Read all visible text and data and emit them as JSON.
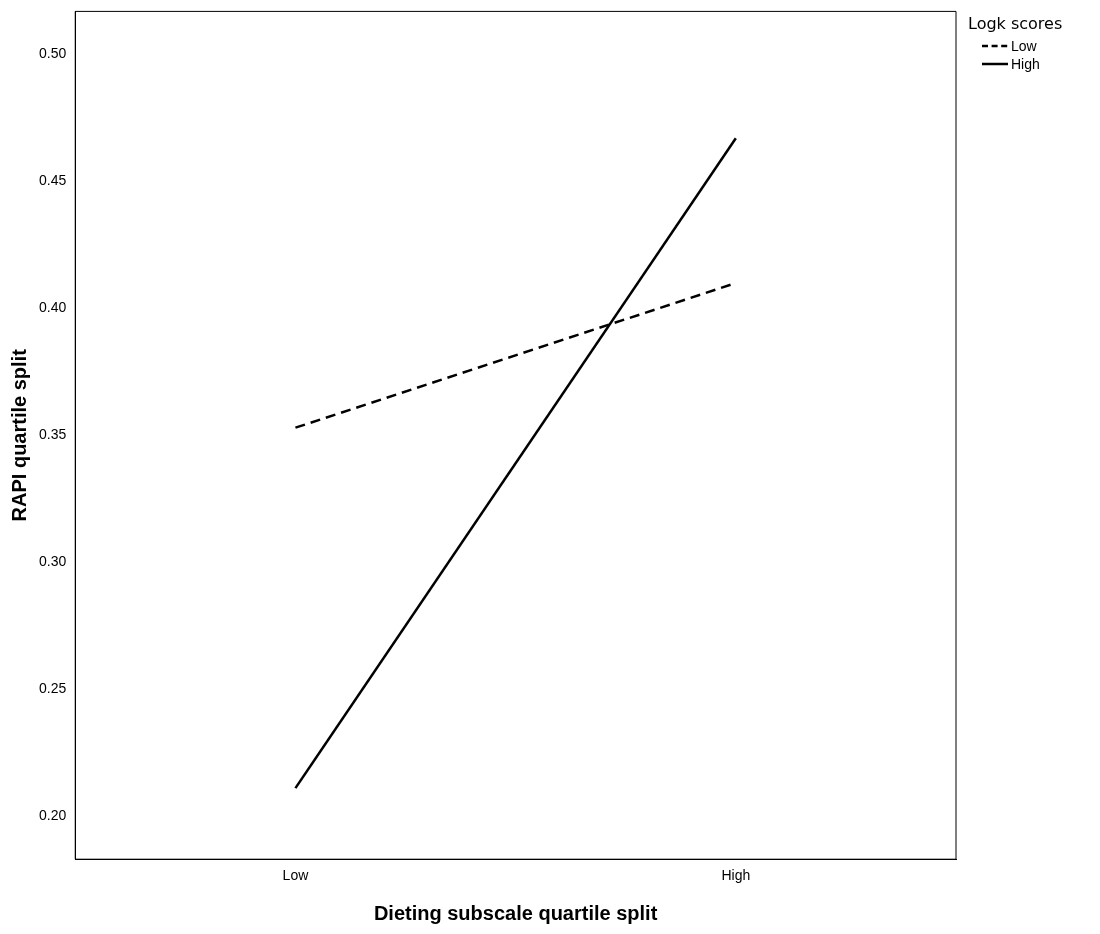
{
  "chart_data": {
    "type": "line",
    "xlabel": "Dieting subscale quartile split",
    "ylabel": "RAPI quartile split",
    "legend_title": "Logk scores",
    "categories": [
      "Low",
      "High"
    ],
    "series": [
      {
        "name": "Low",
        "color": "#000000",
        "line_style": "dashed",
        "values": [
          0.353,
          0.41
        ]
      },
      {
        "name": "High",
        "color": "#000000",
        "line_style": "solid",
        "values": [
          0.211,
          0.467
        ]
      }
    ],
    "ylim": [
      0.183,
      0.517
    ],
    "yticks": [
      {
        "value": 0.2,
        "label": "0.20"
      },
      {
        "value": 0.25,
        "label": "0.25"
      },
      {
        "value": 0.3,
        "label": "0.30"
      },
      {
        "value": 0.35,
        "label": "0.35"
      },
      {
        "value": 0.4,
        "label": "0.40"
      },
      {
        "value": 0.45,
        "label": "0.45"
      },
      {
        "value": 0.5,
        "label": "0.50"
      }
    ],
    "grid": false,
    "legend": "top right",
    "marker": "none"
  }
}
